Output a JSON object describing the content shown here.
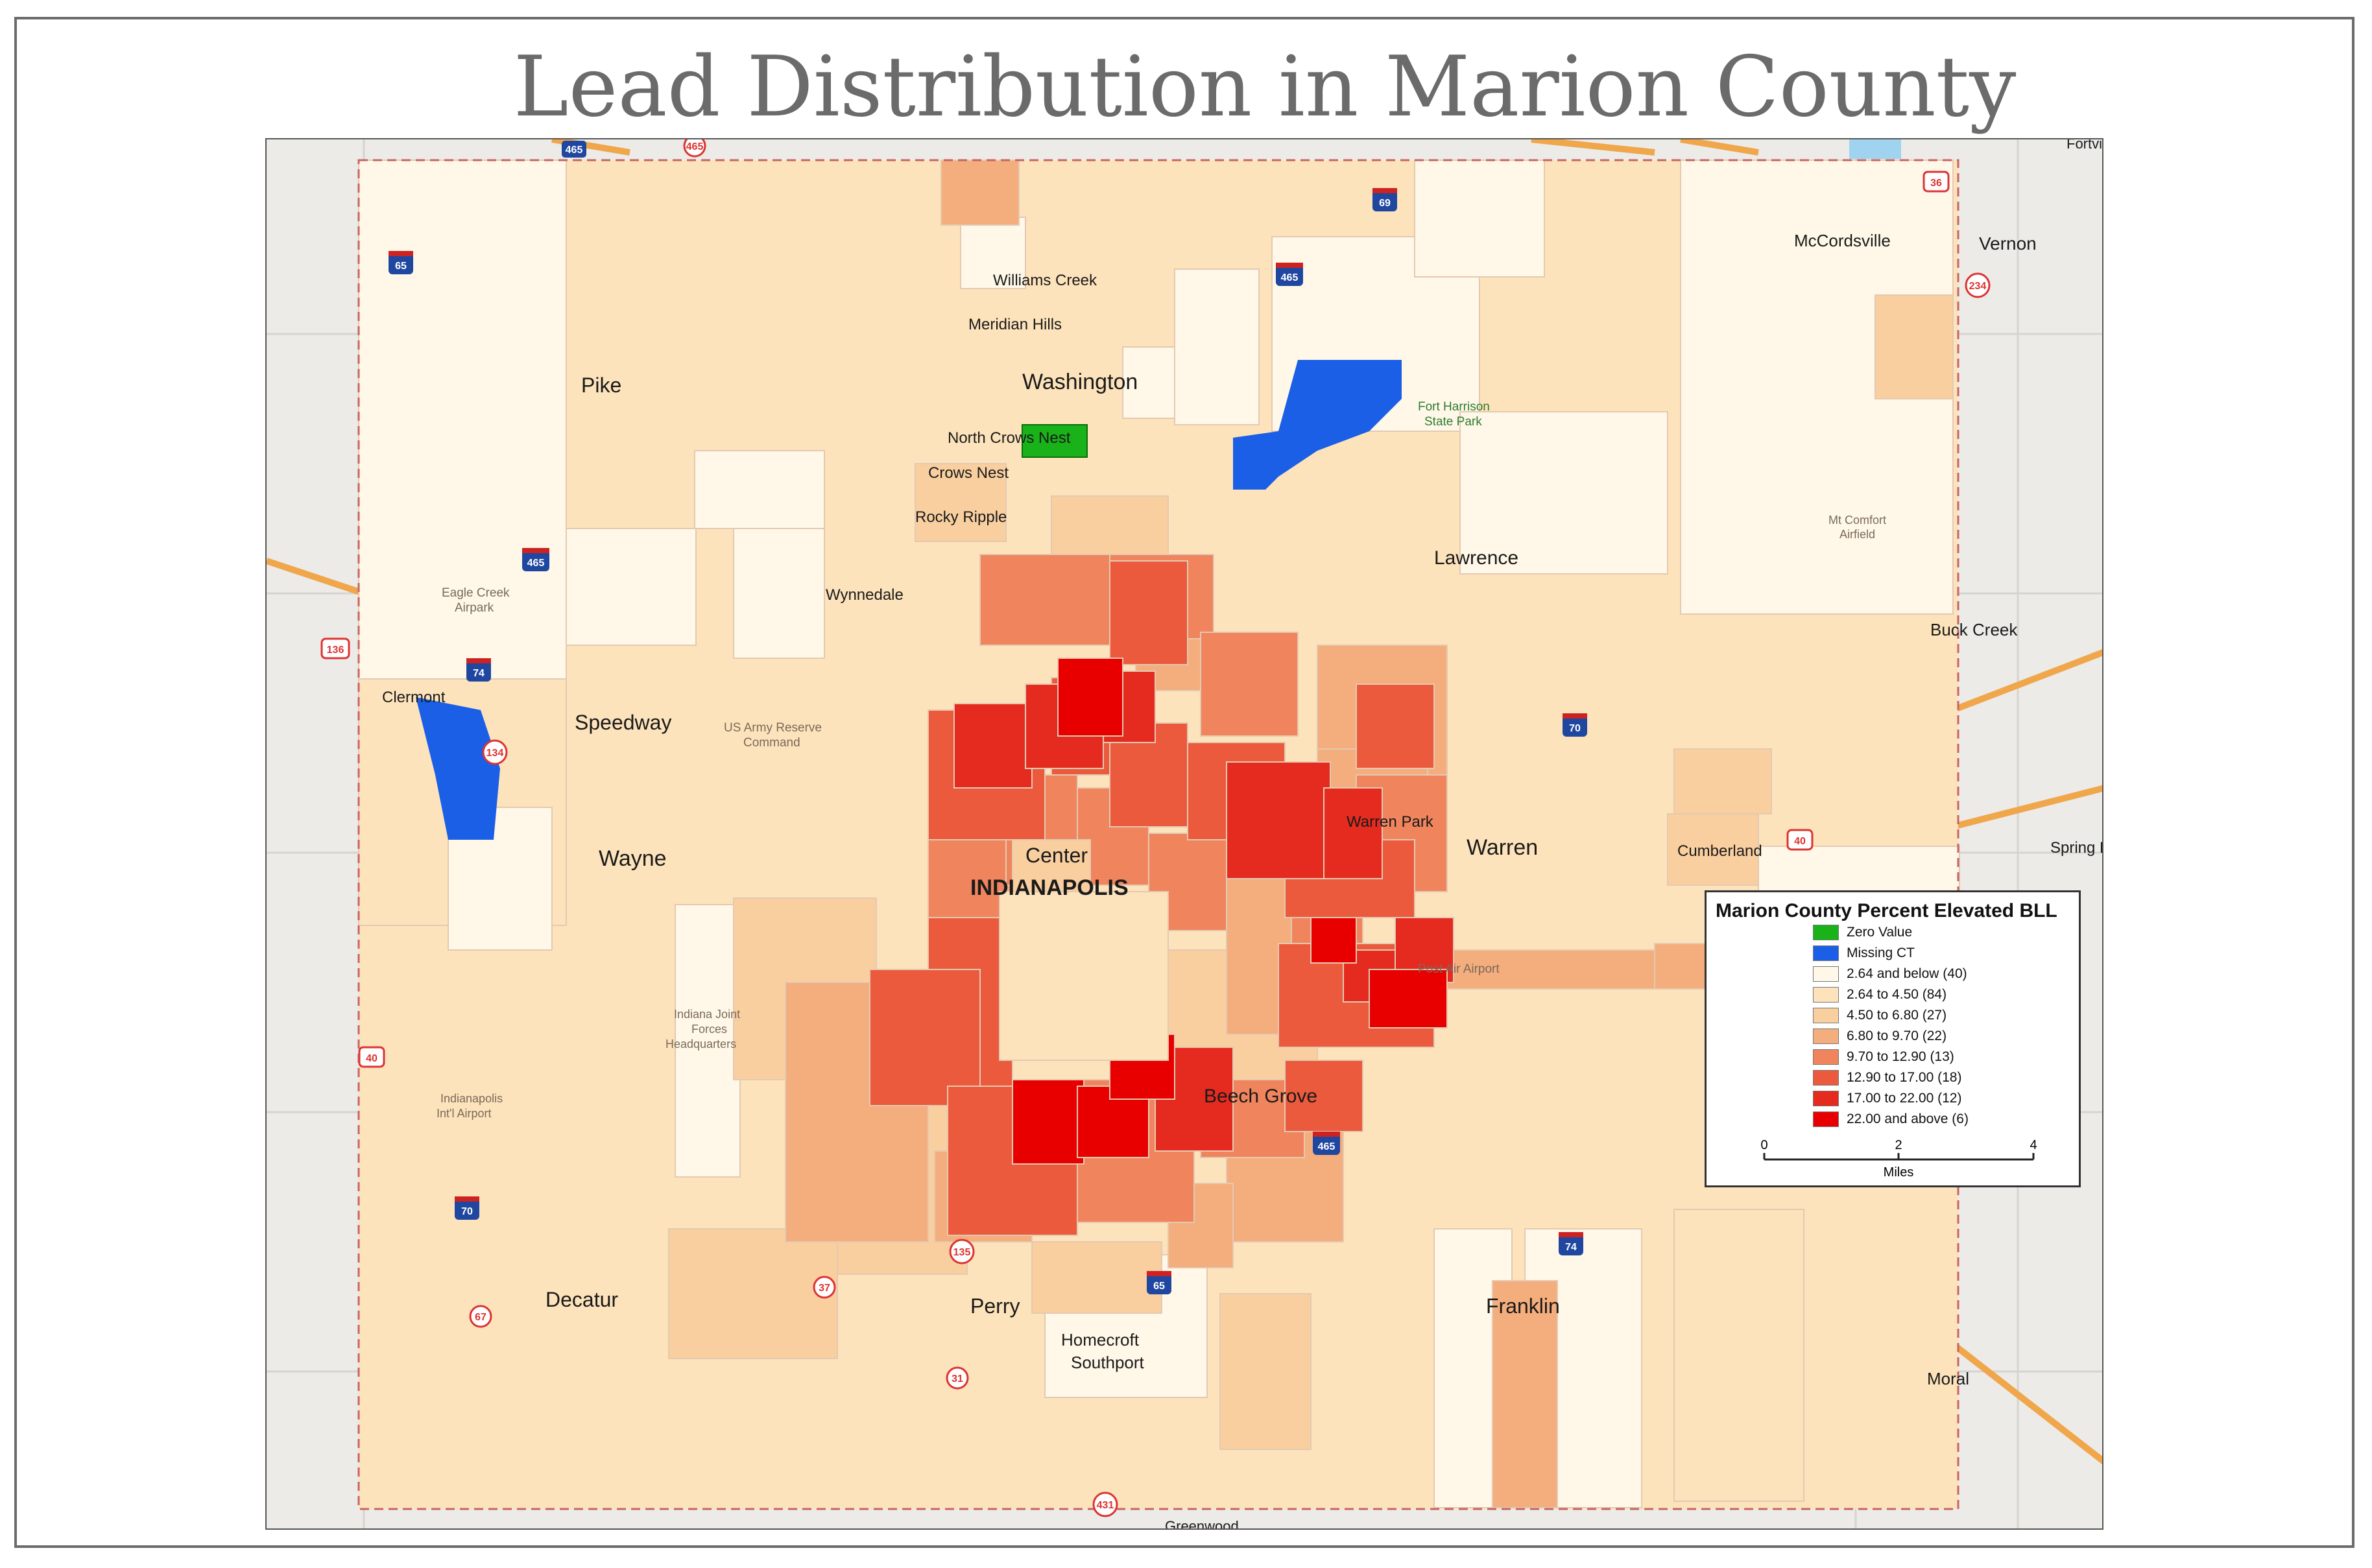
{
  "title": "Lead Distribution in Marion County",
  "legend": {
    "title": "Marion County Percent Elevated BLL",
    "items": [
      {
        "label": "Zero Value",
        "color": "#19b219"
      },
      {
        "label": "Missing CT",
        "color": "#1a5fe6"
      },
      {
        "label": "2.64 and below (40)",
        "color": "#fff8e8"
      },
      {
        "label": "2.64 to 4.50 (84)",
        "color": "#fde3bb"
      },
      {
        "label": "4.50 to 6.80 (27)",
        "color": "#f9cfa0"
      },
      {
        "label": "6.80 to 9.70 (22)",
        "color": "#f4ad7c"
      },
      {
        "label": "9.70 to 12.90 (13)",
        "color": "#f0845d"
      },
      {
        "label": "12.90 to 17.00 (18)",
        "color": "#eb5a3c"
      },
      {
        "label": "17.00 to 22.00 (12)",
        "color": "#e52b1f"
      },
      {
        "label": "22.00 and above (6)",
        "color": "#e80000"
      }
    ],
    "scale": {
      "ticks": [
        "0",
        "2",
        "4"
      ],
      "unit": "Miles"
    }
  },
  "places": {
    "pike": "Pike",
    "washington": "Washington",
    "lawrence": "Lawrence",
    "speedway": "Speedway",
    "wayne": "Wayne",
    "center": "Center",
    "indianapolis": "INDIANAPOLIS",
    "warren": "Warren",
    "warren_park": "Warren Park",
    "beech_grove": "Beech Grove",
    "decatur": "Decatur",
    "perry": "Perry",
    "franklin": "Franklin",
    "homecroft": "Homecroft",
    "southport": "Southport",
    "williams_creek": "Williams Creek",
    "meridian_hills": "Meridian Hills",
    "north_crows_nest": "North Crows Nest",
    "crows_nest": "Crows Nest",
    "rocky_ripple": "Rocky Ripple",
    "wynnedale": "Wynnedale",
    "clermont": "Clermont",
    "cumberland": "Cumberland",
    "mccordsville": "McCordsville",
    "vernon": "Vernon",
    "buck_creek": "Buck Creek",
    "moral": "Moral",
    "spring_lake": "Spring L",
    "fortville": "Fortvi",
    "greenwood": "Greenwood"
  },
  "landmarks": {
    "eagle_creek_1": "Eagle Creek",
    "eagle_creek_2": "Airpark",
    "army_1": "US Army Reserve",
    "army_2": "Command",
    "fort_harrison_1": "Fort Harrison",
    "fort_harrison_2": "State Park",
    "mt_comfort_1": "Mt Comfort",
    "mt_comfort_2": "Airfield",
    "post_air": "Post Air Airport",
    "indiana_joint_1": "Indiana Joint",
    "indiana_joint_2": "Forces",
    "indiana_joint_3": "Headquarters",
    "intl_airport_1": "Indianapolis",
    "intl_airport_2": "Int'l Airport"
  },
  "shields": [
    "465",
    "465",
    "65",
    "69",
    "465",
    "465",
    "74",
    "134",
    "70",
    "40",
    "70",
    "40",
    "67",
    "37",
    "135",
    "65",
    "31",
    "431",
    "465",
    "74",
    "36",
    "234",
    "136"
  ]
}
